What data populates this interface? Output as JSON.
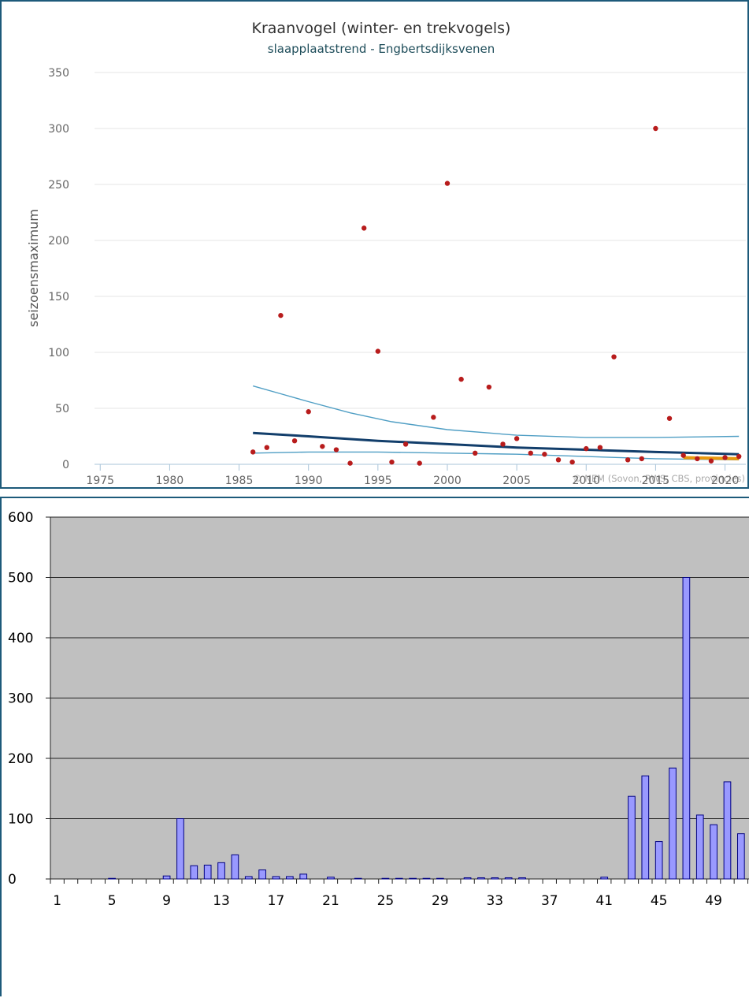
{
  "chart_data": [
    {
      "type": "scatter",
      "title": "Kraanvogel (winter- en trekvogels)",
      "subtitle": "slaapplaatstrend - Engbertsdijksvenen",
      "ylabel": "seizoensmaximum",
      "xlim": [
        1973,
        2021.5
      ],
      "ylim": [
        0,
        350
      ],
      "x_ticks": [
        1975,
        1980,
        1985,
        1990,
        1995,
        2000,
        2005,
        2010,
        2015,
        2020
      ],
      "y_ticks": [
        0,
        50,
        100,
        150,
        200,
        250,
        300,
        350
      ],
      "credit": "© NEM (Sovon, RWS, CBS, provincies)",
      "grid": true,
      "colors": {
        "points": "#b81c1c",
        "trend": "#123e6b",
        "ci": "#4f9ec4",
        "recent": "#e8980e",
        "title": "#333333",
        "subtitle": "#1e4d5a"
      },
      "points": [
        {
          "x": 1986,
          "y": 11
        },
        {
          "x": 1987,
          "y": 15
        },
        {
          "x": 1988,
          "y": 133
        },
        {
          "x": 1989,
          "y": 21
        },
        {
          "x": 1990,
          "y": 47
        },
        {
          "x": 1991,
          "y": 16
        },
        {
          "x": 1992,
          "y": 13
        },
        {
          "x": 1993,
          "y": 1
        },
        {
          "x": 1994,
          "y": 211
        },
        {
          "x": 1995,
          "y": 101
        },
        {
          "x": 1996,
          "y": 2
        },
        {
          "x": 1997,
          "y": 18
        },
        {
          "x": 1998,
          "y": 1
        },
        {
          "x": 1999,
          "y": 42
        },
        {
          "x": 2000,
          "y": 251
        },
        {
          "x": 2001,
          "y": 76
        },
        {
          "x": 2002,
          "y": 10
        },
        {
          "x": 2003,
          "y": 69
        },
        {
          "x": 2004,
          "y": 18
        },
        {
          "x": 2005,
          "y": 23
        },
        {
          "x": 2006,
          "y": 10
        },
        {
          "x": 2007,
          "y": 9
        },
        {
          "x": 2008,
          "y": 4
        },
        {
          "x": 2009,
          "y": 2
        },
        {
          "x": 2010,
          "y": 14
        },
        {
          "x": 2011,
          "y": 15
        },
        {
          "x": 2012,
          "y": 96
        },
        {
          "x": 2013,
          "y": 4
        },
        {
          "x": 2014,
          "y": 5
        },
        {
          "x": 2015,
          "y": 300
        },
        {
          "x": 2016,
          "y": 41
        },
        {
          "x": 2017,
          "y": 8
        },
        {
          "x": 2018,
          "y": 5
        },
        {
          "x": 2019,
          "y": 3
        },
        {
          "x": 2020,
          "y": 6
        },
        {
          "x": 2021,
          "y": 7
        }
      ],
      "trend": {
        "x": [
          1986,
          1990,
          1995,
          2000,
          2005,
          2010,
          2015,
          2021
        ],
        "y": [
          28,
          25,
          21,
          18,
          15,
          13,
          11,
          9
        ]
      },
      "ci_upper": {
        "x": [
          1986,
          1988,
          1990,
          1993,
          1996,
          2000,
          2005,
          2010,
          2015,
          2021
        ],
        "y": [
          70,
          63,
          56,
          46,
          38,
          31,
          26,
          24,
          24,
          25
        ]
      },
      "ci_lower": {
        "x": [
          1986,
          1990,
          1995,
          2000,
          2005,
          2010,
          2015,
          2021
        ],
        "y": [
          10,
          11,
          11,
          10,
          9,
          7,
          5,
          4
        ]
      },
      "recent": {
        "x": [
          2017,
          2021
        ],
        "y": [
          6,
          5
        ]
      }
    },
    {
      "type": "bar",
      "xlim": [
        0.5,
        51.7
      ],
      "ylim": [
        0,
        600
      ],
      "y_ticks": [
        0,
        100,
        200,
        300,
        400,
        500,
        600
      ],
      "x_tick_labels": [
        "1",
        "5",
        "9",
        "13",
        "17",
        "21",
        "25",
        "29",
        "33",
        "37",
        "41",
        "45",
        "49"
      ],
      "grid": true,
      "colors": {
        "bar": "#9999ff",
        "plot_bg": "#c0c0c0"
      },
      "categories": [
        "1",
        "2",
        "3",
        "4",
        "5",
        "6",
        "7",
        "8",
        "9",
        "10",
        "11",
        "12",
        "13",
        "14",
        "15",
        "16",
        "17",
        "18",
        "19",
        "20",
        "21",
        "22",
        "23",
        "24",
        "25",
        "26",
        "27",
        "28",
        "29",
        "30",
        "31",
        "32",
        "33",
        "34",
        "35",
        "36",
        "37",
        "38",
        "39",
        "40",
        "41",
        "42",
        "43",
        "44",
        "45",
        "46",
        "47",
        "48",
        "49",
        "50",
        "51",
        "52"
      ],
      "values": [
        0,
        0,
        0,
        0,
        1,
        0,
        0,
        0,
        5,
        100,
        22,
        23,
        27,
        40,
        4,
        15,
        4,
        4,
        8,
        0,
        3,
        0,
        1,
        0,
        1,
        1,
        1,
        1,
        1,
        0,
        2,
        2,
        2,
        2,
        2,
        0,
        0,
        0,
        0,
        0,
        3,
        0,
        137,
        171,
        62,
        184,
        500,
        106,
        90,
        161,
        75,
        2
      ]
    }
  ]
}
